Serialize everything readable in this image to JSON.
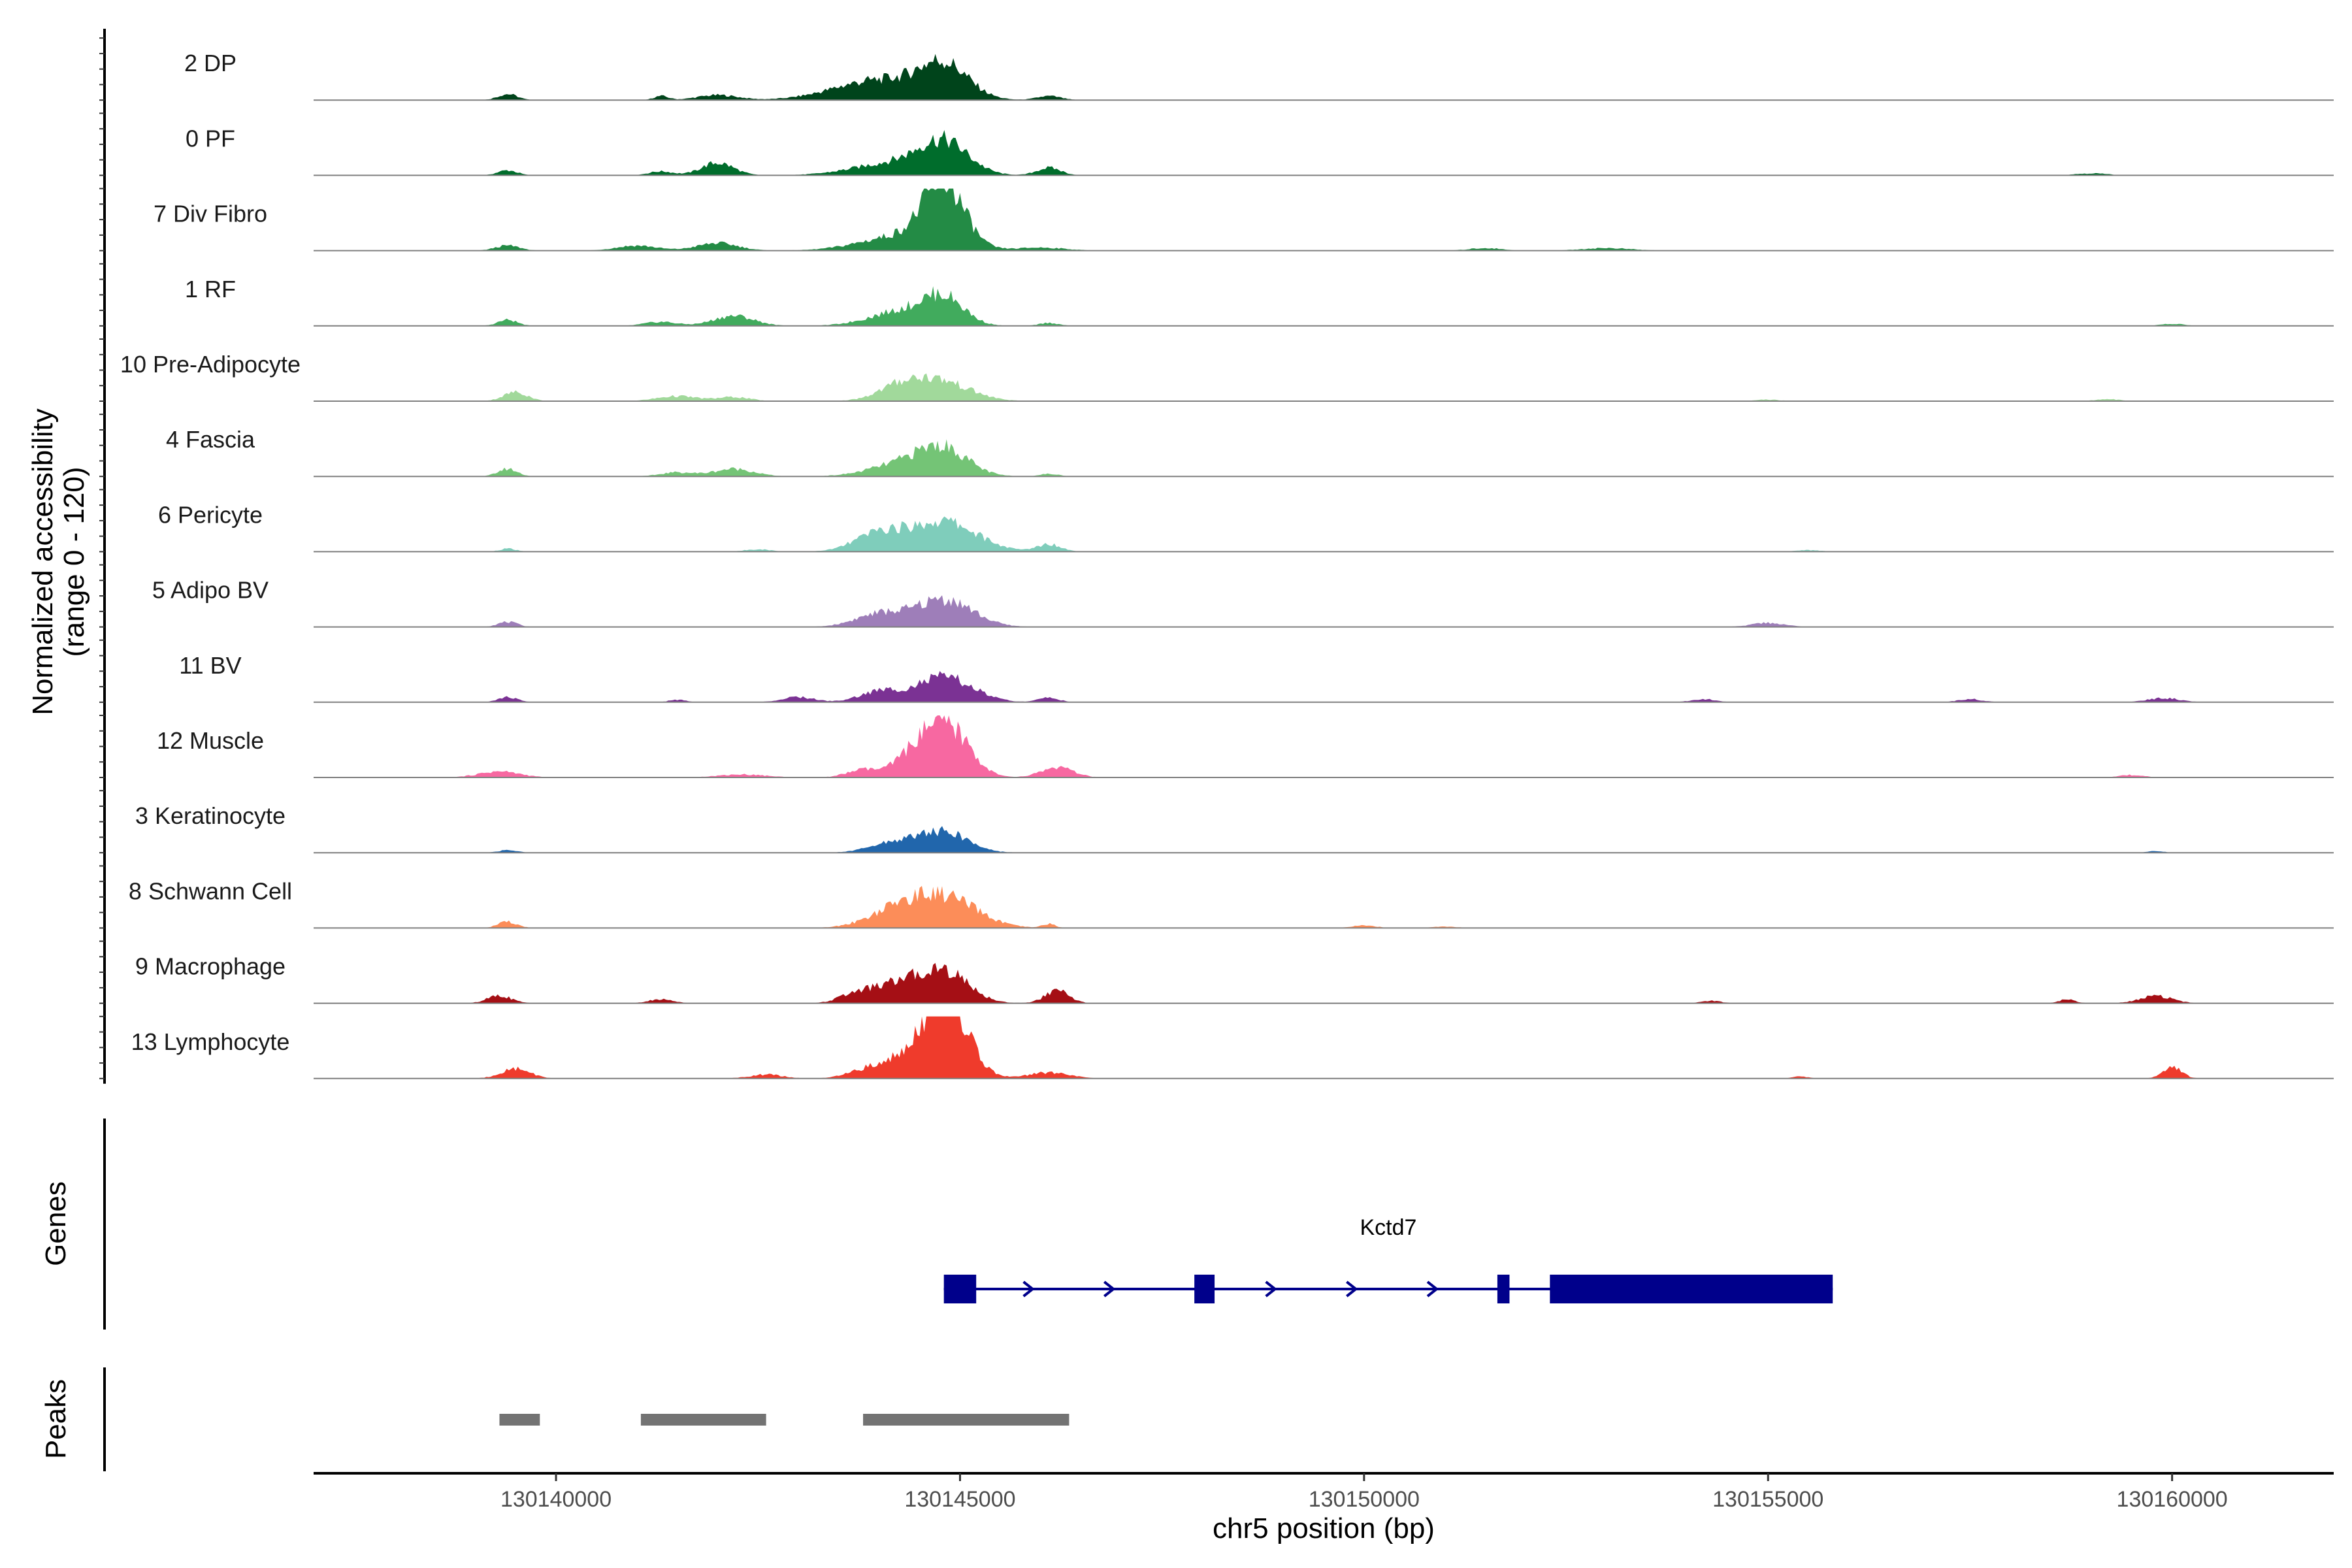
{
  "chart_data": {
    "type": "area",
    "title": "",
    "xlabel": "chr5 position (bp)",
    "ylabel_line1": "Normalized accessibility",
    "ylabel_line2": "(range 0 - 120)",
    "ylim": [
      0,
      120
    ],
    "xlim": [
      130137000,
      130162000
    ],
    "xticks": [
      130140000,
      130145000,
      130150000,
      130155000,
      130160000
    ],
    "xtick_labels": [
      "130140000",
      "130145000",
      "130150000",
      "130155000",
      "130160000"
    ],
    "panel_titles": {
      "genes": "Genes",
      "peaks": "Peaks"
    },
    "tracks": [
      {
        "name": "2 DP",
        "color": "#00441b",
        "peaks": [
          [
            130139400,
            120,
            12
          ],
          [
            130141300,
            90,
            8
          ],
          [
            130142000,
            250,
            10
          ],
          [
            130144000,
            550,
            40
          ],
          [
            130144800,
            300,
            65
          ],
          [
            130146100,
            150,
            8
          ]
        ]
      },
      {
        "name": "0 PF",
        "color": "#006d2c",
        "peaks": [
          [
            130139400,
            120,
            10
          ],
          [
            130141300,
            150,
            8
          ],
          [
            130142000,
            200,
            25
          ],
          [
            130144200,
            500,
            25
          ],
          [
            130144800,
            300,
            60
          ],
          [
            130146100,
            150,
            15
          ],
          [
            130159000,
            200,
            4
          ]
        ]
      },
      {
        "name": "7 Div Fibro",
        "color": "#238b45",
        "peaks": [
          [
            130139400,
            150,
            10
          ],
          [
            130141000,
            250,
            10
          ],
          [
            130142000,
            250,
            15
          ],
          [
            130144300,
            500,
            30
          ],
          [
            130144800,
            250,
            120
          ],
          [
            130146000,
            300,
            6
          ],
          [
            130151500,
            200,
            5
          ],
          [
            130153000,
            300,
            5
          ]
        ]
      },
      {
        "name": "1 RF",
        "color": "#41ab5d",
        "peaks": [
          [
            130139400,
            120,
            12
          ],
          [
            130141300,
            200,
            8
          ],
          [
            130142200,
            250,
            20
          ],
          [
            130144300,
            400,
            30
          ],
          [
            130144800,
            250,
            50
          ],
          [
            130146100,
            120,
            6
          ],
          [
            130160000,
            150,
            4
          ]
        ]
      },
      {
        "name": "10 Pre-Adipocyte",
        "color": "#a1d99b",
        "peaks": [
          [
            130139500,
            150,
            18
          ],
          [
            130141500,
            250,
            10
          ],
          [
            130142200,
            200,
            8
          ],
          [
            130144300,
            300,
            30
          ],
          [
            130144800,
            350,
            35
          ],
          [
            130155000,
            150,
            3
          ],
          [
            130159200,
            150,
            4
          ]
        ]
      },
      {
        "name": "4 Fascia",
        "color": "#74c476",
        "peaks": [
          [
            130139400,
            120,
            15
          ],
          [
            130141500,
            200,
            8
          ],
          [
            130142200,
            250,
            15
          ],
          [
            130144300,
            400,
            25
          ],
          [
            130144800,
            300,
            50
          ],
          [
            130146100,
            120,
            5
          ]
        ]
      },
      {
        "name": "6 Pericyte",
        "color": "#7fcdbb",
        "peaks": [
          [
            130139400,
            100,
            6
          ],
          [
            130142500,
            150,
            5
          ],
          [
            130144000,
            300,
            35
          ],
          [
            130144800,
            400,
            60
          ],
          [
            130146100,
            150,
            15
          ],
          [
            130155500,
            150,
            3
          ]
        ]
      },
      {
        "name": "5 Adipo BV",
        "color": "#9e7eb9",
        "peaks": [
          [
            130139400,
            120,
            10
          ],
          [
            130144000,
            300,
            25
          ],
          [
            130144800,
            350,
            55
          ],
          [
            130155000,
            200,
            8
          ]
        ]
      },
      {
        "name": "11 BV",
        "color": "#7b3294",
        "peaks": [
          [
            130139400,
            120,
            10
          ],
          [
            130141500,
            100,
            5
          ],
          [
            130143000,
            200,
            10
          ],
          [
            130144000,
            250,
            20
          ],
          [
            130144800,
            350,
            50
          ],
          [
            130146100,
            120,
            10
          ],
          [
            130154200,
            150,
            6
          ],
          [
            130157500,
            150,
            6
          ],
          [
            130159900,
            200,
            8
          ]
        ]
      },
      {
        "name": "12 Muscle",
        "color": "#f768a1",
        "peaks": [
          [
            130139300,
            250,
            12
          ],
          [
            130142300,
            300,
            6
          ],
          [
            130143800,
            200,
            15
          ],
          [
            130144500,
            250,
            60
          ],
          [
            130144900,
            250,
            85
          ],
          [
            130146200,
            200,
            20
          ],
          [
            130159500,
            150,
            5
          ]
        ]
      },
      {
        "name": "3 Keratinocyte",
        "color": "#2166ac",
        "peaks": [
          [
            130139400,
            120,
            5
          ],
          [
            130144200,
            300,
            20
          ],
          [
            130144800,
            300,
            40
          ],
          [
            130159800,
            100,
            3
          ]
        ]
      },
      {
        "name": "8 Schwann Cell",
        "color": "#fc8d59",
        "peaks": [
          [
            130139400,
            120,
            12
          ],
          [
            130144200,
            350,
            30
          ],
          [
            130144800,
            400,
            60
          ],
          [
            130146100,
            80,
            8
          ],
          [
            130150000,
            150,
            5
          ],
          [
            130151000,
            150,
            3
          ]
        ]
      },
      {
        "name": "9 Macrophage",
        "color": "#a50f15",
        "peaks": [
          [
            130139300,
            150,
            15
          ],
          [
            130141300,
            150,
            8
          ],
          [
            130143700,
            200,
            15
          ],
          [
            130144200,
            300,
            35
          ],
          [
            130144800,
            300,
            65
          ],
          [
            130146200,
            150,
            25
          ],
          [
            130154300,
            120,
            5
          ],
          [
            130158700,
            100,
            8
          ],
          [
            130159800,
            200,
            15
          ]
        ]
      },
      {
        "name": "13 Lymphocyte",
        "color": "#ef3b2c",
        "peaks": [
          [
            130139500,
            180,
            20
          ],
          [
            130142600,
            200,
            8
          ],
          [
            130143900,
            250,
            20
          ],
          [
            130144600,
            300,
            85
          ],
          [
            130144900,
            250,
            95
          ],
          [
            130146100,
            250,
            12
          ],
          [
            130155400,
            100,
            4
          ],
          [
            130160000,
            120,
            22
          ]
        ]
      }
    ],
    "gene": {
      "name": "Kctd7",
      "color": "#00008b",
      "start": 130144800,
      "end": 130155800,
      "exons": [
        [
          130144800,
          130145200
        ],
        [
          130147900,
          130148150
        ],
        [
          130151650,
          130151800
        ],
        [
          130152300,
          130155800
        ]
      ]
    },
    "peak_regions": {
      "color": "#737373",
      "ranges": [
        [
          130139300,
          130139800
        ],
        [
          130141050,
          130142600
        ],
        [
          130143800,
          130146350
        ]
      ]
    }
  }
}
